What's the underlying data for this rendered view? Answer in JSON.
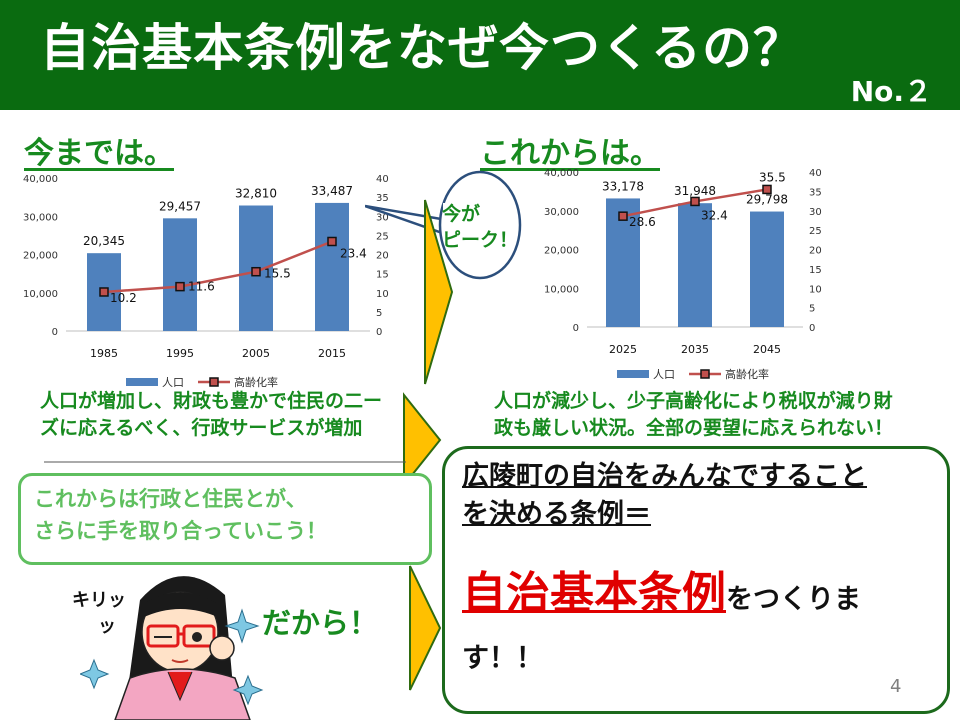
{
  "title": "自治基本条例をなぜ今つくるの？",
  "slide_no": "No.２",
  "left": {
    "heading": "今までは。",
    "description_line1": "人口が増加し、財政も豊かで住民の二ー",
    "description_line2": "ズに応えるべく、行政サービスが増加"
  },
  "right": {
    "heading": "これからは。",
    "description_line1": "人口が減少し、少子高齢化により税収が減り財",
    "description_line2": "政も厳しい状況。全部の要望に応えられない！"
  },
  "peak_bubble": {
    "line1": "今が",
    "line2": "ピーク！"
  },
  "callout": {
    "line1": "これからは行政と住民とが、",
    "line2": "さらに手を取り合っていこう！"
  },
  "result": {
    "line1": "広陵町の自治をみんなですること",
    "line2": "を決める条例＝",
    "big": "自治基本条例",
    "tail1": "をつくりま",
    "tail2": "す！！"
  },
  "dakara": "だから！",
  "kiritsu": {
    "line1": "キリッ",
    "line2": "ッ"
  },
  "page_number": "4",
  "colors": {
    "bar": "#4f81bd",
    "line": "#c0504d",
    "title_bg": "#0a6b10",
    "heading": "#178a1f",
    "arrow": "#ffc000"
  },
  "chart_data": [
    {
      "type": "bar",
      "categories": [
        "1985",
        "1995",
        "2005",
        "2015"
      ],
      "series": [
        {
          "name": "人口",
          "type": "bar",
          "axis": "left",
          "values": [
            20345,
            29457,
            32810,
            33487
          ],
          "labels": [
            "20,345",
            "29,457",
            "32,810",
            "33,487"
          ]
        },
        {
          "name": "高齢化率",
          "type": "line",
          "axis": "right",
          "values": [
            10.2,
            11.6,
            15.5,
            23.4
          ],
          "labels": [
            "10.2",
            "11.6",
            "15.5",
            "23.4"
          ]
        }
      ],
      "left_axis": {
        "min": 0,
        "max": 40000,
        "ticks": [
          "0",
          "10,000",
          "20,000",
          "30,000",
          "40,000"
        ]
      },
      "right_axis": {
        "min": 0,
        "max": 40,
        "ticks": [
          "0",
          "5",
          "10",
          "15",
          "20",
          "25",
          "30",
          "35",
          "40"
        ]
      },
      "legend": "bottom"
    },
    {
      "type": "bar",
      "categories": [
        "2025",
        "2035",
        "2045"
      ],
      "series": [
        {
          "name": "人口",
          "type": "bar",
          "axis": "left",
          "values": [
            33178,
            31948,
            29798
          ],
          "labels": [
            "33,178",
            "31,948",
            "29,798"
          ]
        },
        {
          "name": "高齢化率",
          "type": "line",
          "axis": "right",
          "values": [
            28.6,
            32.4,
            35.5
          ],
          "labels": [
            "28.6",
            "32.4",
            "35.5"
          ]
        }
      ],
      "left_axis": {
        "min": 0,
        "max": 40000,
        "ticks": [
          "0",
          "10,000",
          "20,000",
          "30,000",
          "40,000"
        ]
      },
      "right_axis": {
        "min": 0,
        "max": 40,
        "ticks": [
          "0",
          "5",
          "10",
          "15",
          "20",
          "25",
          "30",
          "35",
          "40"
        ]
      },
      "legend": "bottom"
    }
  ]
}
